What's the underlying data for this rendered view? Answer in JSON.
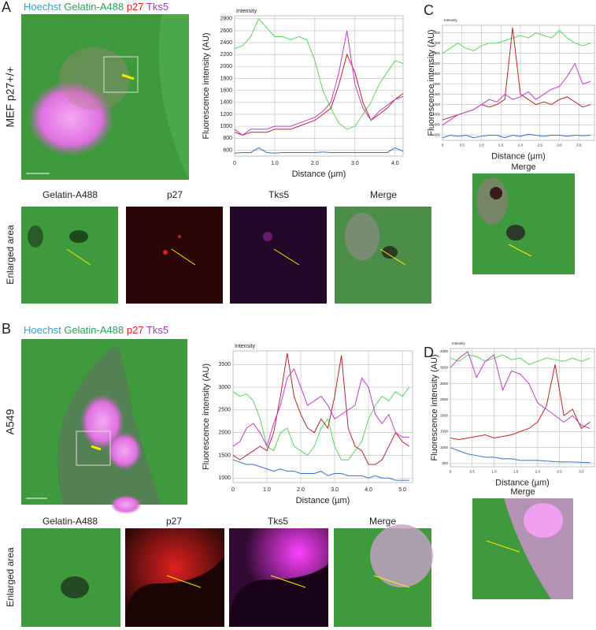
{
  "panel_letters": [
    "A",
    "B",
    "C",
    "D"
  ],
  "stain_legend": [
    {
      "text": "Hoechst",
      "color": "#3a9fc6"
    },
    {
      "text": "Gelatin-A488",
      "color": "#2f9f5a"
    },
    {
      "text": "p27",
      "color": "#d22222"
    },
    {
      "text": "Tks5",
      "color": "#9a3cc0"
    }
  ],
  "cell_lines": [
    "MEF p27+/+",
    "A549"
  ],
  "enlarged_label": "Enlarged area",
  "channel_titles": [
    "Gelatin-A488",
    "p27",
    "Tks5",
    "Merge"
  ],
  "chart_data": [
    {
      "type": "line",
      "axis_note": "Intensity",
      "ylabel": "Fluorescence intensity (AU)",
      "xlabel": "Distance (µm)",
      "grid": true,
      "x": [
        0,
        0.2,
        0.4,
        0.6,
        0.8,
        1.0,
        1.2,
        1.4,
        1.6,
        1.8,
        2.0,
        2.2,
        2.4,
        2.6,
        2.8,
        3.0,
        3.2,
        3.4,
        3.6,
        3.8,
        4.0,
        4.2
      ],
      "xlim": [
        0,
        4.2
      ],
      "ylim": [
        500,
        2850
      ],
      "xticks": [
        0,
        {
          "value": 1,
          "label": "1.0"
        },
        {
          "value": 2,
          "label": "2.0"
        },
        {
          "value": 3,
          "label": "3.0"
        },
        {
          "value": 4,
          "label": "4.0"
        }
      ],
      "yticks": [
        600,
        800,
        1000,
        1200,
        1400,
        1600,
        1800,
        2000,
        2200,
        2400,
        2600,
        2800
      ],
      "series": [
        {
          "color": "#5bd65b",
          "values": [
            2300,
            2350,
            2500,
            2800,
            2650,
            2500,
            2500,
            2450,
            2500,
            2450,
            2100,
            1600,
            1300,
            1050,
            950,
            1000,
            1200,
            1400,
            1700,
            1900,
            2100,
            2050
          ]
        },
        {
          "color": "#b8262a",
          "values": [
            900,
            850,
            900,
            900,
            900,
            950,
            950,
            950,
            1000,
            1050,
            1100,
            1200,
            1300,
            1700,
            2200,
            1900,
            1400,
            1100,
            1200,
            1300,
            1450,
            1550
          ]
        },
        {
          "color": "#c03cd0",
          "values": [
            950,
            850,
            950,
            950,
            950,
            1000,
            1000,
            1000,
            1050,
            1100,
            1150,
            1250,
            1400,
            1900,
            2600,
            1700,
            1300,
            1100,
            1250,
            1350,
            1450,
            1500
          ]
        },
        {
          "color": "#3a6fc8",
          "values": [
            550,
            560,
            560,
            640,
            560,
            550,
            560,
            560,
            560,
            560,
            560,
            570,
            560,
            560,
            560,
            560,
            560,
            560,
            560,
            560,
            640,
            580
          ]
        }
      ]
    },
    {
      "type": "line",
      "axis_note": "Intensity",
      "ylabel": "Fluorescence intensity (AU)",
      "xlabel": "Distance (µm)",
      "grid": true,
      "x": [
        0,
        0.2,
        0.4,
        0.6,
        0.8,
        1.0,
        1.2,
        1.4,
        1.6,
        1.8,
        2.0,
        2.2,
        2.4,
        2.6,
        2.8,
        3.0,
        3.2,
        3.4,
        3.6,
        3.8,
        4.0,
        4.2,
        4.4,
        4.6,
        4.8,
        5.0,
        5.2
      ],
      "xlim": [
        0,
        5.3
      ],
      "ylim": [
        900,
        3800
      ],
      "xticks": [
        0,
        {
          "value": 1,
          "label": "1.0"
        },
        {
          "value": 2,
          "label": "2.0"
        },
        {
          "value": 3,
          "label": "3.0"
        },
        {
          "value": 4,
          "label": "4.0"
        },
        {
          "value": 5,
          "label": "5.0"
        }
      ],
      "yticks": [
        1000,
        1500,
        2000,
        2500,
        3000,
        3500
      ],
      "series": [
        {
          "color": "#5bd65b",
          "values": [
            2900,
            2800,
            2850,
            2700,
            2300,
            1700,
            1600,
            2000,
            2100,
            1700,
            1600,
            1500,
            1700,
            2100,
            2300,
            1700,
            1400,
            1400,
            1600,
            1800,
            2300,
            2600,
            2800,
            2700,
            2900,
            2800,
            3000
          ]
        },
        {
          "color": "#b8262a",
          "values": [
            1500,
            1400,
            1500,
            1600,
            1700,
            1600,
            2000,
            2800,
            3750,
            2800,
            2400,
            2100,
            2000,
            2300,
            2100,
            2800,
            3700,
            2100,
            1700,
            1600,
            1300,
            1300,
            1400,
            1700,
            2000,
            1800,
            1700
          ]
        },
        {
          "color": "#c03cd0",
          "values": [
            1700,
            1800,
            2100,
            2200,
            2000,
            1700,
            2200,
            2600,
            3200,
            3400,
            3000,
            2600,
            2700,
            2800,
            2600,
            2300,
            2400,
            2500,
            2600,
            3200,
            3000,
            2400,
            2200,
            2400,
            2000,
            1900,
            1900
          ]
        },
        {
          "color": "#3a6fc8",
          "values": [
            1400,
            1350,
            1300,
            1300,
            1250,
            1200,
            1150,
            1200,
            1150,
            1150,
            1100,
            1100,
            1100,
            1150,
            1050,
            1100,
            1100,
            1050,
            1050,
            1050,
            1000,
            1050,
            1000,
            1000,
            950,
            950,
            950
          ]
        }
      ]
    },
    {
      "type": "line",
      "axis_note": "Intensity",
      "ylabel": "Fluorescence intensity (AU)",
      "xlabel": "Distance (µm)",
      "grid": true,
      "x": [
        0,
        0.2,
        0.4,
        0.6,
        0.8,
        1.0,
        1.2,
        1.4,
        1.6,
        1.8,
        2.0,
        2.2,
        2.4,
        2.6,
        2.8,
        3.0,
        3.2,
        3.4,
        3.6,
        3.8
      ],
      "xlim": [
        0,
        3.9
      ],
      "ylim": [
        500,
        2750
      ],
      "xticks": [
        0,
        0.5,
        {
          "value": 1,
          "label": "1.0"
        },
        1.5,
        {
          "value": 2,
          "label": "2.0"
        },
        2.5,
        {
          "value": 3,
          "label": "3.0"
        },
        3.5
      ],
      "yticks": [
        600,
        800,
        1000,
        1200,
        1400,
        1600,
        1800,
        2000,
        2200,
        2400,
        2600
      ],
      "series": [
        {
          "color": "#5bd65b",
          "values": [
            2200,
            2300,
            2400,
            2300,
            2250,
            2350,
            2400,
            2400,
            2450,
            2500,
            2550,
            2500,
            2600,
            2550,
            2500,
            2650,
            2500,
            2400,
            2350,
            2400
          ]
        },
        {
          "color": "#b8262a",
          "values": [
            900,
            950,
            1000,
            1050,
            1100,
            1200,
            1150,
            1200,
            1300,
            2700,
            1400,
            1300,
            1200,
            1250,
            1200,
            1300,
            1350,
            1250,
            1150,
            1200
          ]
        },
        {
          "color": "#c03cd0",
          "values": [
            800,
            900,
            1000,
            1050,
            1100,
            1200,
            1300,
            1250,
            1400,
            1300,
            1350,
            1450,
            1300,
            1400,
            1500,
            1550,
            1750,
            2000,
            1600,
            1650
          ]
        },
        {
          "color": "#3a6fc8",
          "values": [
            550,
            600,
            580,
            600,
            550,
            580,
            600,
            600,
            550,
            600,
            580,
            620,
            600,
            580,
            600,
            600,
            580,
            600,
            590,
            600
          ]
        }
      ]
    },
    {
      "type": "line",
      "axis_note": "Intensity",
      "ylabel": "Fluorescence intensity (AU)",
      "xlabel": "Distance (µm)",
      "grid": true,
      "x": [
        0,
        0.2,
        0.4,
        0.6,
        0.8,
        1.0,
        1.2,
        1.4,
        1.6,
        1.8,
        2.0,
        2.2,
        2.4,
        2.6,
        2.8,
        3.0,
        3.2
      ],
      "xlim": [
        0,
        3.3
      ],
      "ylim": [
        400,
        4100
      ],
      "xticks": [
        0,
        0.5,
        {
          "value": 1,
          "label": "1.0"
        },
        1.5,
        {
          "value": 2,
          "label": "2.0"
        },
        2.5,
        {
          "value": 3,
          "label": "3.0"
        }
      ],
      "yticks": [
        500,
        1000,
        1500,
        2000,
        2500,
        3000,
        3500,
        4000
      ],
      "series": [
        {
          "color": "#5bd65b",
          "values": [
            3800,
            3700,
            3900,
            3850,
            3700,
            3800,
            3900,
            3750,
            3800,
            3600,
            3700,
            3800,
            3750,
            3700,
            3800,
            3700,
            3800
          ]
        },
        {
          "color": "#b8262a",
          "values": [
            1300,
            1250,
            1300,
            1350,
            1400,
            1300,
            1350,
            1400,
            1500,
            1600,
            1800,
            2300,
            3600,
            2000,
            2200,
            1600,
            1800
          ]
        },
        {
          "color": "#c03cd0",
          "values": [
            3500,
            3800,
            4000,
            3200,
            3700,
            3900,
            2800,
            3400,
            3300,
            3000,
            2400,
            2200,
            2000,
            1800,
            2000,
            1700,
            1600
          ]
        },
        {
          "color": "#3a6fc8",
          "values": [
            1000,
            900,
            800,
            750,
            700,
            700,
            650,
            650,
            600,
            600,
            600,
            580,
            560,
            550,
            550,
            540,
            530
          ]
        }
      ]
    }
  ]
}
